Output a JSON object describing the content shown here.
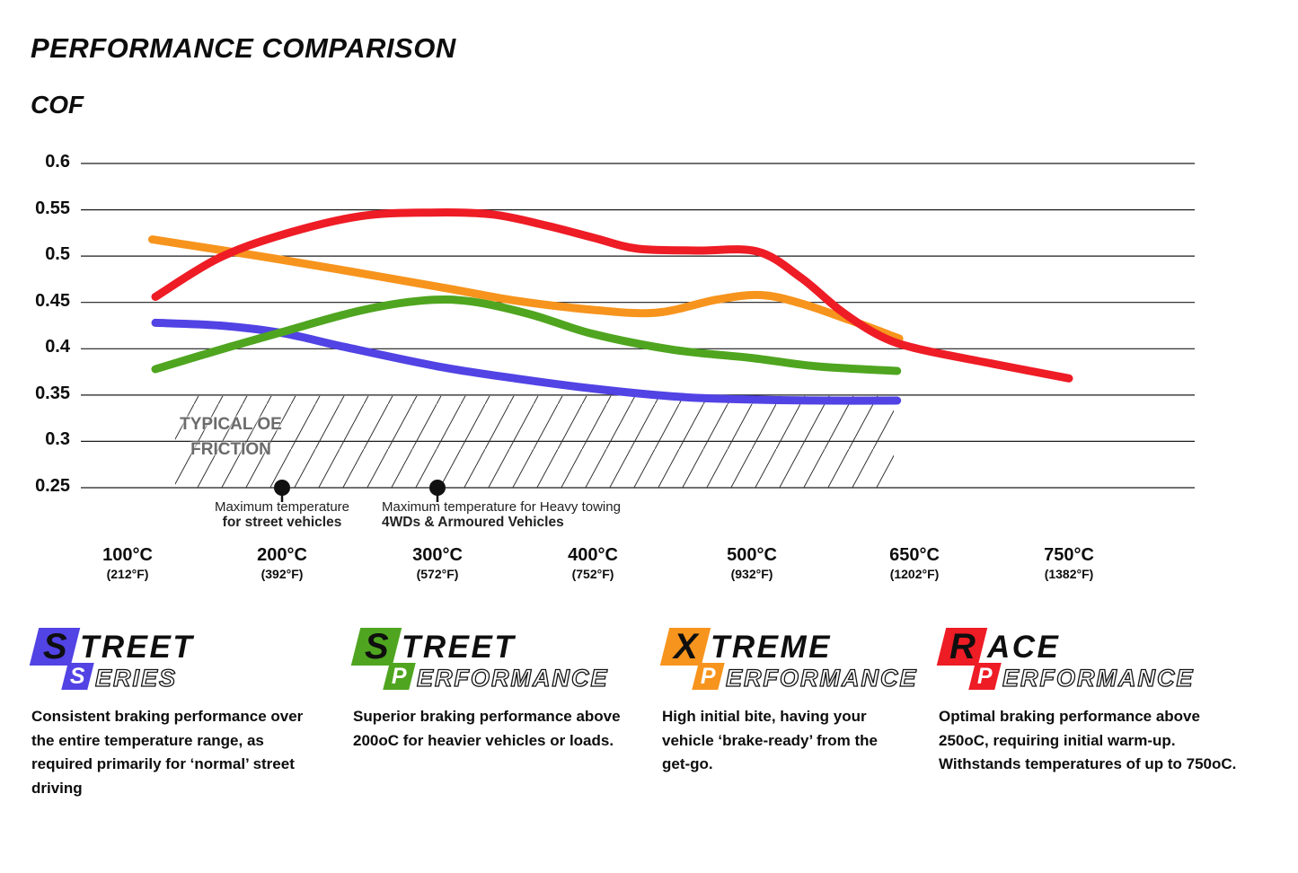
{
  "title": "PERFORMANCE COMPARISON",
  "y_axis_label": "COF",
  "chart_data": {
    "type": "line",
    "title": "PERFORMANCE COMPARISON",
    "ylabel": "COF",
    "ylim": [
      0.25,
      0.6
    ],
    "grid": "horizontal",
    "y_ticks": [
      "0.6",
      "0.55",
      "0.5",
      "0.45",
      "0.4",
      "0.35",
      "0.3",
      "0.25"
    ],
    "y_tick_values": [
      0.6,
      0.55,
      0.5,
      0.45,
      0.4,
      0.35,
      0.3,
      0.25
    ],
    "x_ticks": [
      {
        "temp": 100,
        "celsius": "100°C",
        "fahrenheit": "(212°F)"
      },
      {
        "temp": 200,
        "celsius": "200°C",
        "fahrenheit": "(392°F)"
      },
      {
        "temp": 300,
        "celsius": "300°C",
        "fahrenheit": "(572°F)"
      },
      {
        "temp": 400,
        "celsius": "400°C",
        "fahrenheit": "(752°F)"
      },
      {
        "temp": 500,
        "celsius": "500°C",
        "fahrenheit": "(932°F)"
      },
      {
        "temp": 650,
        "celsius": "650°C",
        "fahrenheit": "(1202°F)"
      },
      {
        "temp": 750,
        "celsius": "750°C",
        "fahrenheit": "(1382°F)"
      }
    ],
    "series": [
      {
        "name": "Street Series",
        "color": "#5143e4",
        "points": [
          [
            118,
            0.428
          ],
          [
            160,
            0.425
          ],
          [
            200,
            0.417
          ],
          [
            240,
            0.402
          ],
          [
            300,
            0.381
          ],
          [
            350,
            0.368
          ],
          [
            400,
            0.357
          ],
          [
            455,
            0.348
          ],
          [
            505,
            0.345
          ],
          [
            570,
            0.344
          ],
          [
            634,
            0.344
          ]
        ]
      },
      {
        "name": "Street Performance",
        "color": "#4fa51f",
        "points": [
          [
            118,
            0.378
          ],
          [
            160,
            0.399
          ],
          [
            200,
            0.418
          ],
          [
            250,
            0.441
          ],
          [
            290,
            0.452
          ],
          [
            322,
            0.451
          ],
          [
            360,
            0.437
          ],
          [
            400,
            0.416
          ],
          [
            450,
            0.399
          ],
          [
            500,
            0.39
          ],
          [
            560,
            0.381
          ],
          [
            634,
            0.376
          ]
        ]
      },
      {
        "name": "Xtreme Performance",
        "color": "#f7941d",
        "points": [
          [
            116,
            0.518
          ],
          [
            200,
            0.496
          ],
          [
            300,
            0.467
          ],
          [
            350,
            0.452
          ],
          [
            400,
            0.442
          ],
          [
            440,
            0.439
          ],
          [
            478,
            0.453
          ],
          [
            508,
            0.458
          ],
          [
            545,
            0.449
          ],
          [
            590,
            0.431
          ],
          [
            636,
            0.411
          ]
        ]
      },
      {
        "name": "Race Performance",
        "color": "#ee1c25",
        "points": [
          [
            118,
            0.456
          ],
          [
            158,
            0.497
          ],
          [
            200,
            0.523
          ],
          [
            250,
            0.543
          ],
          [
            295,
            0.547
          ],
          [
            335,
            0.545
          ],
          [
            370,
            0.533
          ],
          [
            400,
            0.52
          ],
          [
            428,
            0.508
          ],
          [
            465,
            0.506
          ],
          [
            505,
            0.505
          ],
          [
            545,
            0.477
          ],
          [
            582,
            0.441
          ],
          [
            618,
            0.414
          ],
          [
            652,
            0.4
          ],
          [
            700,
            0.384
          ],
          [
            750,
            0.368
          ]
        ]
      }
    ],
    "oe_band": {
      "label_line1": "TYPICAL OE",
      "label_line2": "FRICTION",
      "cof_min": 0.25,
      "cof_max": 0.35,
      "temp_start": 131,
      "temp_end": 631
    },
    "annotations": [
      {
        "temp": 200,
        "cof": 0.25,
        "align": "center",
        "line1": "Maximum temperature",
        "line2": "for street vehicles"
      },
      {
        "temp": 300,
        "cof": 0.25,
        "align": "left",
        "line1": "Maximum temperature for Heavy towing",
        "line2": "4WDs & Armoured Vehicles"
      }
    ]
  },
  "legend": {
    "items": [
      {
        "id": "street-series",
        "color": "#5143e4",
        "word_top_first": "S",
        "word_top_rest": "TREET",
        "word_bottom_first": "S",
        "word_bottom_rest": "ERIES",
        "description": "Consistent braking performance over the entire temperature range, as required primarily for ‘normal’ street driving"
      },
      {
        "id": "street-performance",
        "color": "#4fa51f",
        "word_top_first": "S",
        "word_top_rest": "TREET",
        "word_bottom_first": "P",
        "word_bottom_rest": "ERFORMANCE",
        "description": "Superior braking performance above 200oC for heavier vehicles or loads."
      },
      {
        "id": "xtreme-performance",
        "color": "#f7941d",
        "word_top_first": "X",
        "word_top_rest": "TREME",
        "word_bottom_first": "P",
        "word_bottom_rest": "ERFORMANCE",
        "description": "High initial bite, having your vehicle ‘brake-ready’ from the get-go."
      },
      {
        "id": "race-performance",
        "color": "#ee1c25",
        "word_top_first": "R",
        "word_top_rest": "ACE",
        "word_bottom_first": "P",
        "word_bottom_rest": "ERFORMANCE",
        "description": "Optimal braking performance above 250oC, requiring initial warm-up. Withstands temperatures of up to 750oC."
      }
    ]
  }
}
